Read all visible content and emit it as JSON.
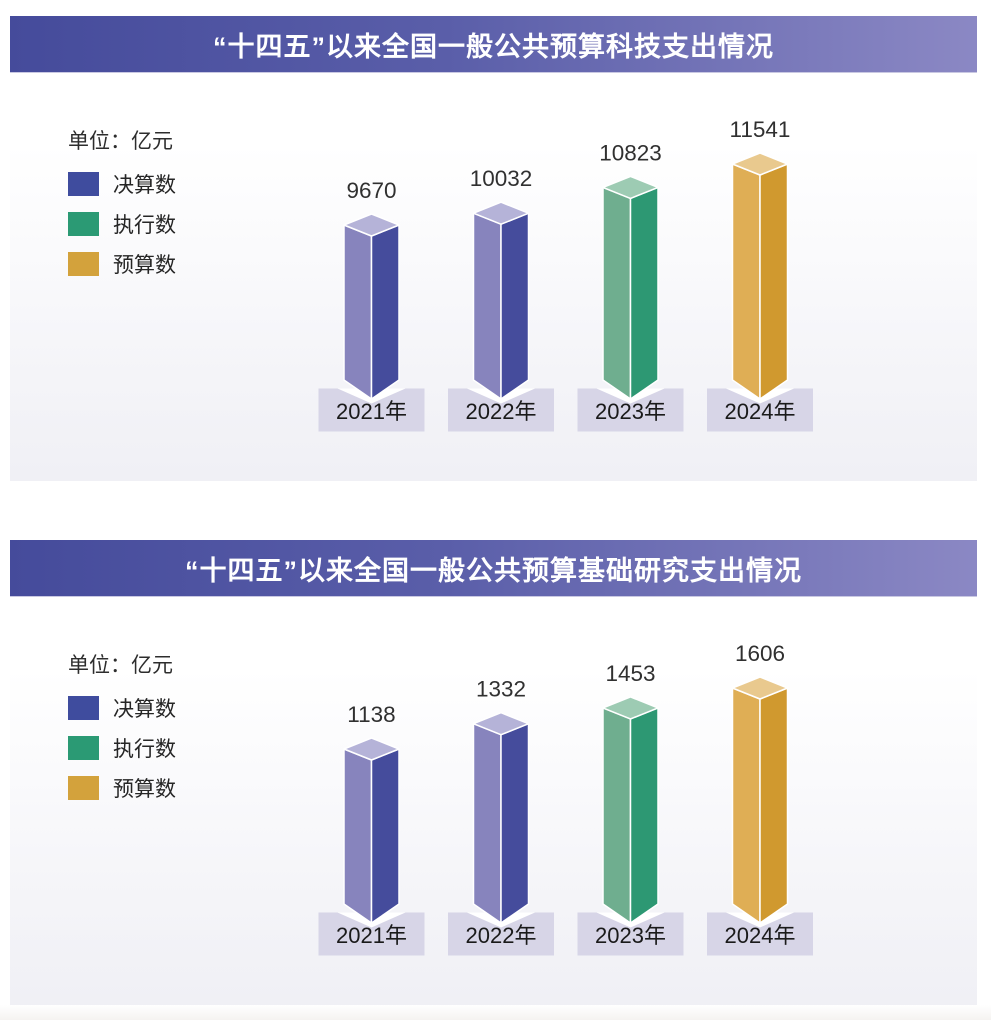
{
  "page": {
    "background": "#ffffff"
  },
  "charts": [
    {
      "title": "“十四五”以来全国一般公共预算科技支出情况",
      "unit_label": "单位：亿元"
    },
    {
      "title": "“十四五”以来全国一般公共预算基础研究支出情况",
      "unit_label": "单位：亿元"
    }
  ],
  "chart_data": [
    {
      "type": "bar",
      "title": "“十四五”以来全国一般公共预算科技支出情况",
      "unit": "亿元",
      "categories": [
        "2021年",
        "2022年",
        "2023年",
        "2024年"
      ],
      "values": [
        9670,
        10032,
        10823,
        11541
      ],
      "series_by_bar": [
        "决算数",
        "决算数",
        "执行数",
        "预算数"
      ],
      "legend_entries": [
        "决算数",
        "执行数",
        "预算数"
      ],
      "legend_position": "top-left",
      "grid": false,
      "axes_visible": false,
      "data_labels": "above each column",
      "style": "3d-columns, non-zero stylized baseline"
    },
    {
      "type": "bar",
      "title": "“十四五”以来全国一般公共预算基础研究支出情况",
      "unit": "亿元",
      "categories": [
        "2021年",
        "2022年",
        "2023年",
        "2024年"
      ],
      "values": [
        1138,
        1332,
        1453,
        1606
      ],
      "series_by_bar": [
        "决算数",
        "决算数",
        "执行数",
        "预算数"
      ],
      "legend_entries": [
        "决算数",
        "执行数",
        "预算数"
      ],
      "legend_position": "top-left",
      "grid": false,
      "axes_visible": false,
      "data_labels": "above each column",
      "style": "3d-columns, non-zero stylized baseline"
    }
  ],
  "colors": {
    "title_bar_gradient": [
      "#454B9B",
      "#8B88C4"
    ],
    "title_text": "#ffffff",
    "legend_swatches": {
      "决算数": "#3F4C9E",
      "执行数": "#2B9A74",
      "预算数": "#D3A23C"
    },
    "bar_faces": {
      "决算数": {
        "left": "#8784BD",
        "right": "#454C9C",
        "top": "#B5B3D8"
      },
      "执行数": {
        "left": "#6FAE8F",
        "right": "#2D9873",
        "top": "#9DCBB3"
      },
      "预算数": {
        "left": "#DFAE55",
        "right": "#D0992F",
        "top": "#E9C98E"
      }
    },
    "year_box_fill": "#D7D5E7",
    "value_label": "#303030",
    "year_label": "#1A1A1A",
    "panel_bottom_tint": "#F0F0F5"
  }
}
